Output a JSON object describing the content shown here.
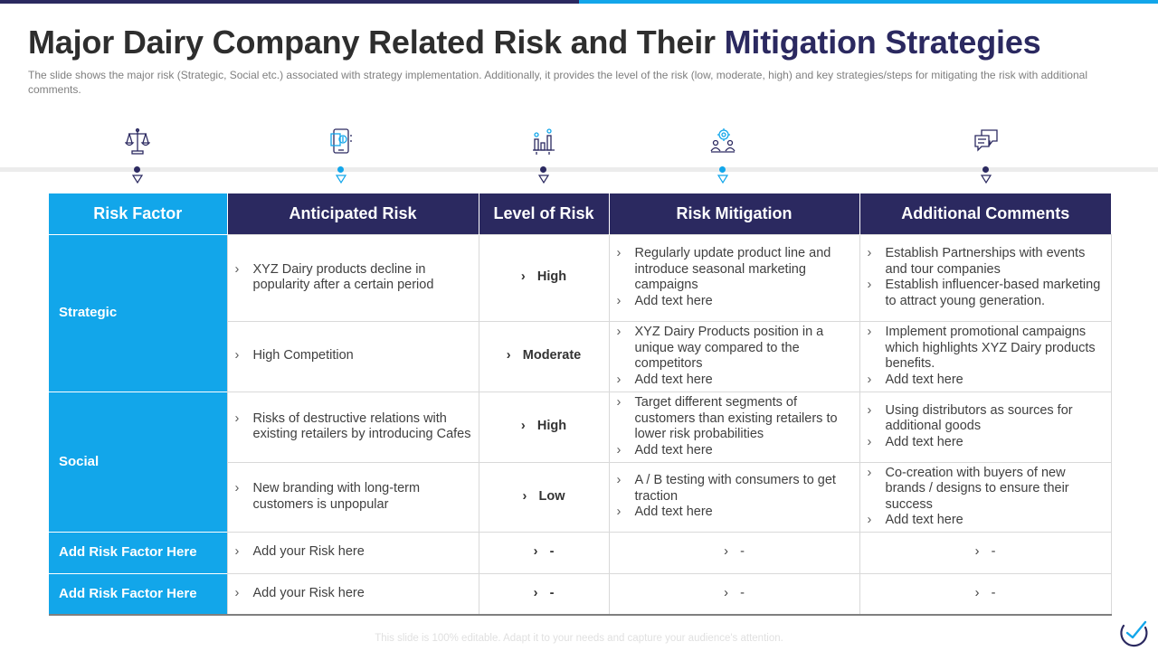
{
  "header": {
    "title_main": "Major Dairy Company Related Risk and Their",
    "title_accent": "Mitigation Strategies",
    "subtitle": "The slide shows the major risk (Strategic, Social etc.) associated with strategy implementation. Additionally, it provides  the level of the risk (low, moderate, high) and key strategies/steps for mitigating the risk with additional comments."
  },
  "colors": {
    "navy": "#2b2960",
    "blue": "#12a6ea"
  },
  "icons": [
    {
      "name": "balance-scale-icon",
      "dot": "navy"
    },
    {
      "name": "mobile-document-icon",
      "dot": "blue"
    },
    {
      "name": "bar-chart-icon",
      "dot": "navy"
    },
    {
      "name": "team-gear-icon",
      "dot": "blue"
    },
    {
      "name": "chat-bubbles-icon",
      "dot": "navy"
    }
  ],
  "table": {
    "headers": [
      "Risk Factor",
      "Anticipated Risk",
      "Level of Risk",
      "Risk Mitigation",
      "Additional Comments"
    ],
    "bullet": "›",
    "factors": {
      "strategic": "Strategic",
      "social": "Social",
      "add1": "Add Risk Factor Here",
      "add2": "Add Risk Factor Here"
    },
    "rows": [
      {
        "risk": "XYZ  Dairy products decline in popularity after a certain period",
        "level": "High",
        "mitigation": [
          "Regularly update product line and introduce seasonal marketing campaigns",
          "Add text here"
        ],
        "comments": [
          "Establish Partnerships with events and tour companies",
          "Establish influencer-based marketing to attract young generation."
        ]
      },
      {
        "risk": "High Competition",
        "level": "Moderate",
        "mitigation": [
          "XYZ Dairy Products position in a unique way compared to the competitors",
          "Add text here"
        ],
        "comments": [
          "Implement promotional campaigns which highlights XYZ Dairy products benefits.",
          "Add text here"
        ]
      },
      {
        "risk": "Risks of destructive relations with existing retailers by introducing Cafes",
        "level": "High",
        "mitigation": [
          "Target different segments of customers than existing retailers to lower risk probabilities",
          "Add text here"
        ],
        "comments": [
          "Using distributors as sources for additional goods",
          "Add text here"
        ]
      },
      {
        "risk": "New branding with long-term customers is unpopular",
        "level": "Low",
        "mitigation": [
          "A / B testing with consumers to get traction",
          "Add text here"
        ],
        "comments": [
          "Co-creation with buyers of new brands / designs to ensure their success",
          "Add text here"
        ]
      },
      {
        "risk": "Add your Risk here",
        "level": "-",
        "mitigation": [
          "-"
        ],
        "comments": [
          "-"
        ]
      },
      {
        "risk": "Add your Risk here",
        "level": "-",
        "mitigation": [
          "-"
        ],
        "comments": [
          "-"
        ]
      }
    ]
  },
  "footer": "This slide is 100% editable. Adapt it to your needs and capture your audience's attention.",
  "logo": "brand-logo"
}
